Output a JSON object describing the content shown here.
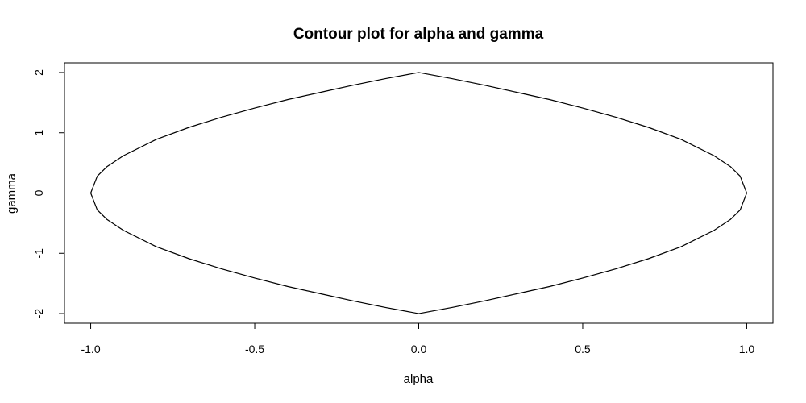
{
  "chart_data": {
    "type": "line",
    "title": "Contour plot for alpha and gamma",
    "xlabel": "alpha",
    "ylabel": "gamma",
    "xlim": [
      -1.08,
      1.08
    ],
    "ylim": [
      -2.16,
      2.16
    ],
    "x_ticks": [
      -1.0,
      -0.5,
      0.0,
      0.5,
      1.0
    ],
    "x_tick_labels": [
      "-1.0",
      "-0.5",
      "0.0",
      "0.5",
      "1.0"
    ],
    "y_ticks": [
      -2,
      -1,
      0,
      1,
      2
    ],
    "y_tick_labels": [
      "-2",
      "-1",
      "0",
      "1",
      "2"
    ],
    "grid": false,
    "series": [
      {
        "color": "#000000",
        "x": [
          0.0,
          0.1,
          0.2,
          0.3,
          0.4,
          0.5,
          0.6,
          0.7,
          0.8,
          0.9,
          0.95,
          0.98,
          1.0,
          0.98,
          0.95,
          0.9,
          0.8,
          0.7,
          0.6,
          0.5,
          0.4,
          0.3,
          0.2,
          0.1,
          0.0,
          -0.1,
          -0.2,
          -0.3,
          -0.4,
          -0.5,
          -0.6,
          -0.7,
          -0.8,
          -0.9,
          -0.95,
          -0.98,
          -1.0,
          -0.98,
          -0.95,
          -0.9,
          -0.8,
          -0.7,
          -0.6,
          -0.5,
          -0.4,
          -0.3,
          -0.2,
          -0.1,
          0.0
        ],
        "y": [
          2.0,
          1.9,
          1.79,
          1.67,
          1.55,
          1.41,
          1.26,
          1.09,
          0.89,
          0.62,
          0.44,
          0.28,
          0.0,
          -0.28,
          -0.44,
          -0.62,
          -0.89,
          -1.09,
          -1.26,
          -1.41,
          -1.55,
          -1.67,
          -1.79,
          -1.9,
          -2.0,
          -1.9,
          -1.79,
          -1.67,
          -1.55,
          -1.41,
          -1.26,
          -1.09,
          -0.89,
          -0.62,
          -0.44,
          -0.28,
          0.0,
          0.28,
          0.44,
          0.62,
          0.89,
          1.09,
          1.26,
          1.41,
          1.55,
          1.67,
          1.79,
          1.9,
          2.0
        ]
      }
    ]
  }
}
